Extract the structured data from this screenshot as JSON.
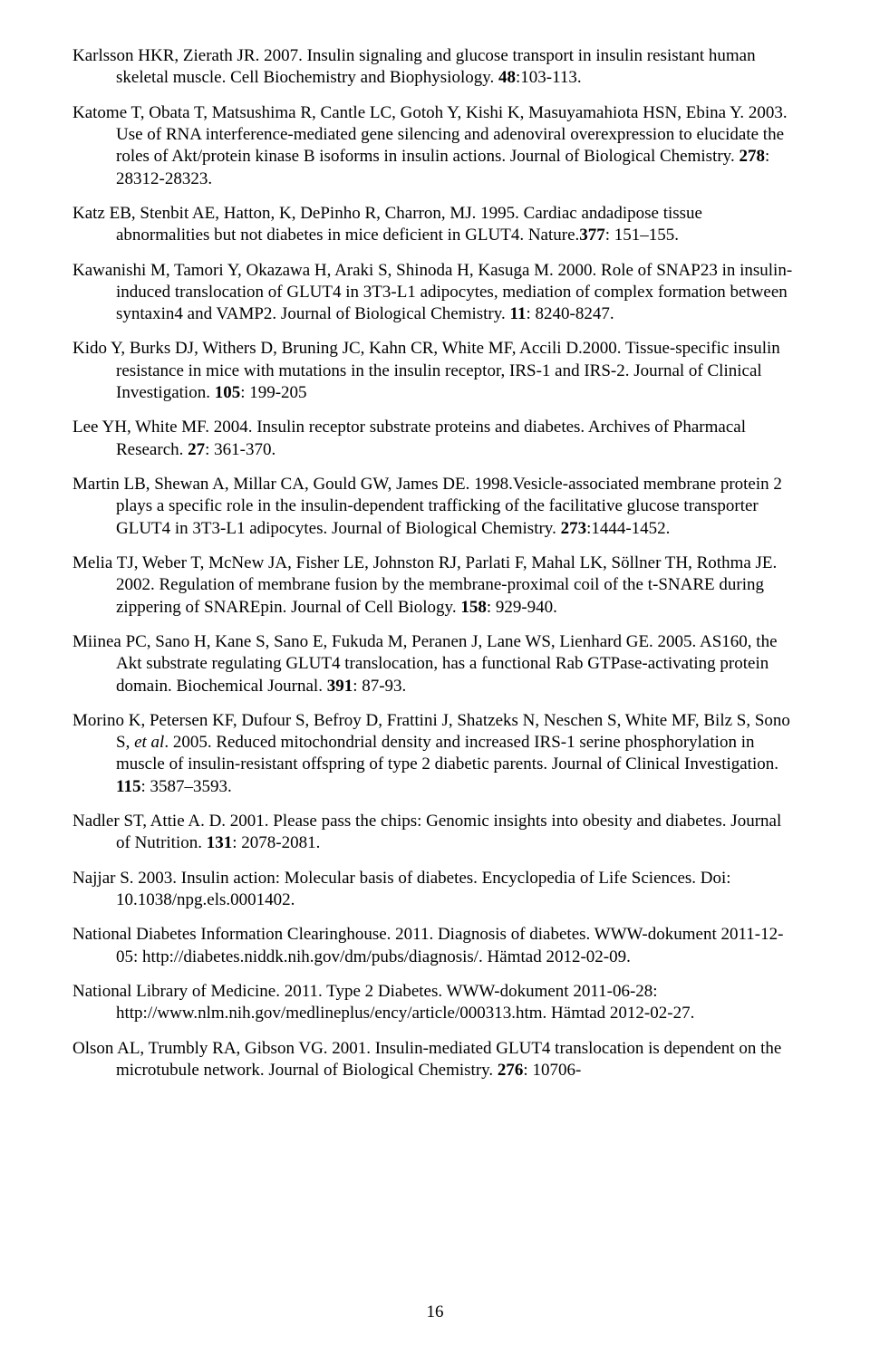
{
  "page_number": "16",
  "refs": [
    {
      "segments": [
        {
          "t": "Karlsson HKR, Zierath JR. 2007. Insulin signaling and glucose transport in insulin resistant human skeletal muscle. Cell Biochemistry and Biophysiology. "
        },
        {
          "t": "48",
          "b": true
        },
        {
          "t": ":103-113."
        }
      ]
    },
    {
      "segments": [
        {
          "t": "Katome T, Obata T, Matsushima R,  Cantle LC, Gotoh Y, Kishi K, Masuyamahiota HSN, Ebina Y. 2003. Use of RNA interference-mediated gene silencing and adenoviral overexpression to elucidate the roles of Akt/protein kinase B isoforms in  insulin actions. Journal of Biological Chemistry. "
        },
        {
          "t": "278",
          "b": true
        },
        {
          "t": ": 28312-28323."
        }
      ]
    },
    {
      "segments": [
        {
          "t": "Katz EB, Stenbit AE, Hatton, K, DePinho R, Charron, MJ. 1995. Cardiac andadipose tissue abnormalities but not diabetes in mice deficient in GLUT4. Nature."
        },
        {
          "t": "377",
          "b": true
        },
        {
          "t": ": 151–155."
        }
      ]
    },
    {
      "segments": [
        {
          "t": "Kawanishi M, Tamori Y, Okazawa H, Araki S, Shinoda H, Kasuga M. 2000. Role of SNAP23 in insulin-induced translocation of GLUT4 in 3T3-L1 adipocytes, mediation of complex formation between syntaxin4 and VAMP2. Journal of Biological Chemistry. "
        },
        {
          "t": "11",
          "b": true
        },
        {
          "t": ": 8240-8247."
        }
      ]
    },
    {
      "segments": [
        {
          "t": "Kido Y, Burks DJ, Withers D, Bruning JC, Kahn CR, White MF, Accili D.2000. Tissue-specific insulin resistance in mice with mutations in the insulin receptor, IRS-1 and IRS-2. Journal of Clinical Investigation. "
        },
        {
          "t": "105",
          "b": true
        },
        {
          "t": ": 199-205"
        }
      ]
    },
    {
      "segments": [
        {
          "t": "Lee YH, White MF. 2004. Insulin receptor substrate proteins and diabetes. Archives of Pharmacal Research. "
        },
        {
          "t": "27",
          "b": true
        },
        {
          "t": ": 361-370."
        }
      ]
    },
    {
      "segments": [
        {
          "t": "Martin LB, Shewan A, Millar CA, Gould GW, James DE. 1998.Vesicle-associated membrane protein 2 plays a specific role in the insulin-dependent  trafficking of the facilitative glucose transporter GLUT4 in 3T3-L1 adipocytes. Journal of Biological Chemistry. "
        },
        {
          "t": "273",
          "b": true
        },
        {
          "t": ":1444-1452."
        }
      ]
    },
    {
      "segments": [
        {
          "t": "Melia TJ, Weber T, McNew JA, Fisher LE, Johnston RJ, Parlati F, Mahal LK, Söllner TH, Rothma JE. 2002. Regulation of membrane fusion by the membrane-proximal coil of the t-SNARE during zippering of SNAREpin. Journal of Cell Biology. "
        },
        {
          "t": "158",
          "b": true
        },
        {
          "t": ": 929-940."
        }
      ]
    },
    {
      "segments": [
        {
          "t": "Miinea PC, Sano H, Kane S, Sano E, Fukuda M, Peranen J,  Lane WS, Lienhard GE. 2005. AS160, the Akt substrate regulating GLUT4 translocation, has a functional Rab GTPase-activating protein domain. Biochemical Journal. "
        },
        {
          "t": "391",
          "b": true
        },
        {
          "t": ": 87-93."
        }
      ]
    },
    {
      "segments": [
        {
          "t": "Morino K, Petersen KF, Dufour S, Befroy D, Frattini J, Shatzeks N, Neschen S, White  MF, Bilz S, Sono S, "
        },
        {
          "t": "et al",
          "i": true
        },
        {
          "t": ". 2005. Reduced mitochondrial density and increased IRS-1 serine phosphorylation in muscle of insulin-resistant offspring of type 2  diabetic parents. Journal of Clinical Investigation. "
        },
        {
          "t": "115",
          "b": true
        },
        {
          "t": ": 3587–3593."
        }
      ]
    },
    {
      "segments": [
        {
          "t": "Nadler ST, Attie A. D. 2001. Please pass the chips: Genomic insights into obesity and diabetes. Journal of Nutrition. "
        },
        {
          "t": "131",
          "b": true
        },
        {
          "t": ": 2078-2081."
        }
      ]
    },
    {
      "segments": [
        {
          "t": "Najjar S. 2003. Insulin action: Molecular basis of diabetes. Encyclopedia of Life Sciences. Doi: 10.1038/npg.els.0001402."
        }
      ]
    },
    {
      "segments": [
        {
          "t": "National Diabetes Information Clearinghouse. 2011. Diagnosis of diabetes. WWW-dokument 2011-12-05: http://diabetes.niddk.nih.gov/dm/pubs/diagnosis/. Hämtad 2012-02-09."
        }
      ]
    },
    {
      "segments": [
        {
          "t": "National Library of Medicine. 2011. Type 2 Diabetes. WWW-dokument 2011-06-28: http://www.nlm.nih.gov/medlineplus/ency/article/000313.htm. Hämtad 2012-02-27."
        }
      ]
    },
    {
      "segments": [
        {
          "t": "Olson AL, Trumbly RA, Gibson VG. 2001. Insulin-mediated GLUT4 translocation is dependent on the microtubule network. Journal of Biological Chemistry. "
        },
        {
          "t": "276",
          "b": true
        },
        {
          "t": ": 10706-"
        }
      ]
    }
  ]
}
